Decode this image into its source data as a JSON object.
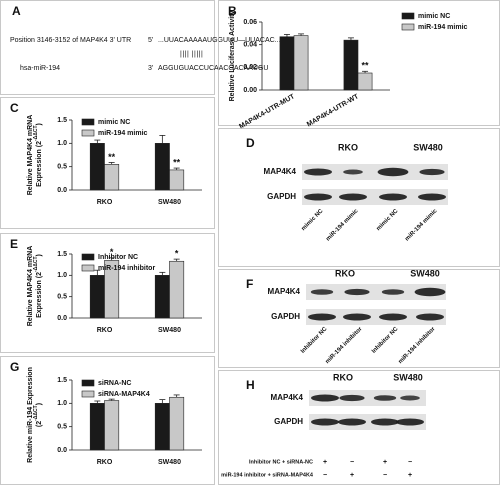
{
  "sequence": {
    "panel": "A",
    "target_label": "Position 3146-3152 of MAP4K4 3' UTR",
    "target_end": "5'",
    "target_seq": "...UUACAAAAAUGGUUU—UUACAC...",
    "pairing": "||||   |||||",
    "mirna_label": "hsa-miR-194",
    "mirna_end": "3'",
    "mirna_seq": "AGGUGUACCUCAACGACAAUGU"
  },
  "chart_data": [
    {
      "type": "bar",
      "panel": "B",
      "ylabel": "Relative Luciferase Activity",
      "categories": [
        "MAP4K4-UTR-MUT",
        "MAP4K4-UTR-WT"
      ],
      "series": [
        {
          "name": "mimic NC",
          "color": "#1a1a1a",
          "values": [
            0.047,
            0.044
          ],
          "errors": [
            0.002,
            0.002
          ]
        },
        {
          "name": "miR-194 mimic",
          "color": "#c8c8c8",
          "values": [
            0.048,
            0.015
          ],
          "errors": [
            0.0015,
            0.0015
          ]
        }
      ],
      "ylim": [
        0,
        0.06
      ],
      "yticks": [
        {
          "value": 0,
          "label": "0.00"
        },
        {
          "value": 0.02,
          "label": "0.02"
        },
        {
          "value": 0.04,
          "label": "0.04"
        },
        {
          "value": 0.06,
          "label": "0.06"
        }
      ],
      "annotations": [
        {
          "text": "**",
          "series": 1,
          "category": 1
        }
      ]
    },
    {
      "type": "bar",
      "panel": "C",
      "ylabel": [
        "Relative MAP4K4 mRNA",
        "Expression (2",
        "-ΔΔCT",
        ")"
      ],
      "categories": [
        "RKO",
        "SW480"
      ],
      "series": [
        {
          "name": "mimic NC",
          "color": "#1a1a1a",
          "values": [
            1.0,
            1.0
          ],
          "errors": [
            0.07,
            0.17
          ]
        },
        {
          "name": "miR-194 mimic",
          "color": "#c8c8c8",
          "values": [
            0.55,
            0.43
          ],
          "errors": [
            0.04,
            0.04
          ]
        }
      ],
      "ylim": [
        0,
        1.5
      ],
      "yticks": [
        {
          "value": 0,
          "label": "0.0"
        },
        {
          "value": 0.5,
          "label": "0.5"
        },
        {
          "value": 1,
          "label": "1.0"
        },
        {
          "value": 1.5,
          "label": "1.5"
        }
      ],
      "annotations": [
        {
          "text": "**",
          "series": 1,
          "category": 0
        },
        {
          "text": "**",
          "series": 1,
          "category": 1
        }
      ]
    },
    {
      "type": "bar",
      "panel": "E",
      "ylabel": [
        "Relative MAP4K4 mRNA",
        "Expression (2",
        "-ΔΔCT",
        ")"
      ],
      "categories": [
        "RKO",
        "SW480"
      ],
      "series": [
        {
          "name": "Inhibitor NC",
          "color": "#1a1a1a",
          "values": [
            1.0,
            1.0
          ],
          "errors": [
            0.12,
            0.07
          ]
        },
        {
          "name": "miR-194 inhibitor",
          "color": "#c8c8c8",
          "values": [
            1.35,
            1.33
          ],
          "errors": [
            0.06,
            0.05
          ]
        }
      ],
      "ylim": [
        0,
        1.5
      ],
      "yticks": [
        {
          "value": 0,
          "label": "0.0"
        },
        {
          "value": 0.5,
          "label": "0.5"
        },
        {
          "value": 1,
          "label": "1.0"
        },
        {
          "value": 1.5,
          "label": "1.5"
        }
      ],
      "annotations": [
        {
          "text": "*",
          "series": 1,
          "category": 0
        },
        {
          "text": "*",
          "series": 1,
          "category": 1
        }
      ]
    },
    {
      "type": "bar",
      "panel": "G",
      "ylabel": [
        "Relative miR-194 Expression",
        "(2",
        "-ΔΔCT",
        ")"
      ],
      "categories": [
        "RKO",
        "SW480"
      ],
      "series": [
        {
          "name": "siRNA-NC",
          "color": "#1a1a1a",
          "values": [
            1.0,
            1.0
          ],
          "errors": [
            0.05,
            0.08
          ]
        },
        {
          "name": "siRNA-MAP4K4",
          "color": "#c8c8c8",
          "values": [
            1.06,
            1.13
          ],
          "errors": [
            0.03,
            0.05
          ]
        }
      ],
      "ylim": [
        0,
        1.5
      ],
      "yticks": [
        {
          "value": 0,
          "label": "0.0"
        },
        {
          "value": 0.5,
          "label": "0.5"
        },
        {
          "value": 1,
          "label": "1.0"
        },
        {
          "value": 1.5,
          "label": "1.5"
        }
      ],
      "annotations": []
    }
  ],
  "blots": [
    {
      "panel": "D",
      "cell_lines": [
        "RKO",
        "SW480"
      ],
      "rows": [
        "MAP4K4",
        "GAPDH"
      ],
      "lanes": [
        "mimic NC",
        "miR-194 mimic",
        "mimic NC",
        "miR-194 mimic"
      ]
    },
    {
      "panel": "F",
      "cell_lines": [
        "RKO",
        "SW480"
      ],
      "rows": [
        "MAP4K4",
        "GAPDH"
      ],
      "lanes": [
        "Inhibitor NC",
        "miR-194 inhibitor",
        "Inhibitor NC",
        "miR-194 inhibitor"
      ]
    },
    {
      "panel": "H",
      "cell_lines": [
        "RKO",
        "SW480"
      ],
      "rows": [
        "MAP4K4",
        "GAPDH"
      ],
      "conditions": [
        {
          "label": "Inhibitor NC + siRNA-NC",
          "signs": [
            "+",
            "−",
            "+",
            "−"
          ]
        },
        {
          "label": "miR-194 inhibitor + siRNA-MAP4K4",
          "signs": [
            "−",
            "+",
            "−",
            "+"
          ]
        }
      ]
    }
  ]
}
